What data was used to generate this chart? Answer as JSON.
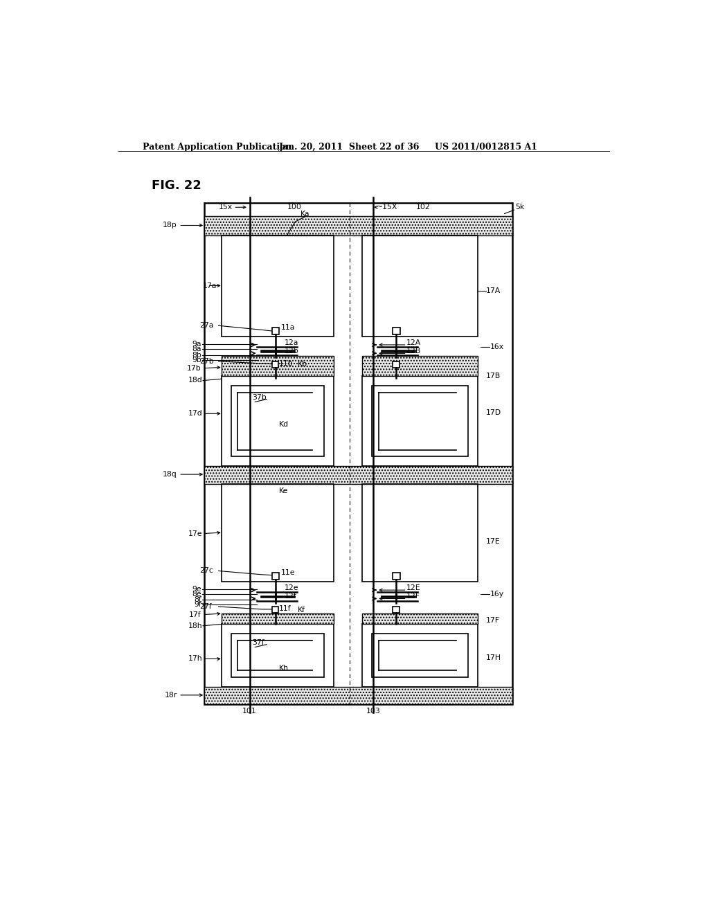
{
  "title": "FIG. 22",
  "header_left": "Patent Application Publication",
  "header_mid": "Jan. 20, 2011  Sheet 22 of 36",
  "header_right": "US 2011/0012815 A1",
  "bg_color": "#ffffff",
  "fg_color": "#000000"
}
